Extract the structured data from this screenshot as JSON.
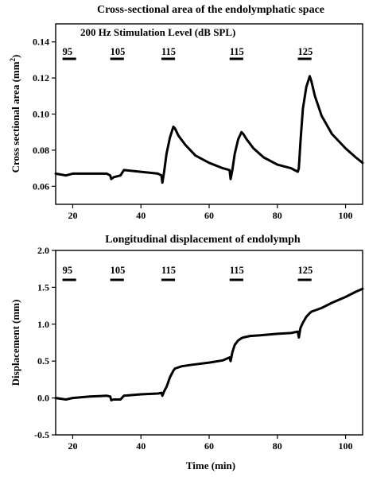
{
  "chart_data": [
    {
      "type": "line",
      "title": "Cross-sectional area of the endolymphatic space",
      "xlabel": "",
      "ylabel_main": "Cross sectional area (mm",
      "ylabel_sup": "2",
      "ylabel_end": ")",
      "xlim": [
        15,
        105
      ],
      "ylim": [
        0.05,
        0.15
      ],
      "xticks": [
        20,
        40,
        60,
        80,
        100
      ],
      "yticks": [
        0.06,
        0.08,
        0.1,
        0.12,
        0.14
      ],
      "ytick_labels": [
        "0.06",
        "0.08",
        "0.10",
        "0.12",
        "0.14"
      ],
      "stimulation_header": "200 Hz Stimulation Level (dB SPL)",
      "stimulus_labels": [
        "95",
        "105",
        "115",
        "115",
        "125"
      ],
      "stimulus_spans": [
        [
          17,
          21
        ],
        [
          31,
          35
        ],
        [
          46,
          50
        ],
        [
          66,
          70
        ],
        [
          86,
          90
        ]
      ],
      "series": [
        {
          "x": [
            15,
            18,
            20,
            25,
            30,
            31,
            31.3,
            32,
            34,
            35,
            40,
            45,
            46,
            46.3,
            46.8,
            47.5,
            48.5,
            49.5,
            50,
            51,
            53,
            56,
            60,
            64,
            66,
            66.3,
            66.8,
            67.5,
            68.5,
            69.5,
            70,
            71,
            73,
            76,
            80,
            84,
            86,
            86.3,
            86.8,
            87.5,
            88.5,
            89.5,
            90,
            91,
            93,
            96,
            100,
            103,
            105
          ],
          "y": [
            0.067,
            0.066,
            0.067,
            0.067,
            0.067,
            0.066,
            0.064,
            0.065,
            0.066,
            0.069,
            0.068,
            0.067,
            0.066,
            0.062,
            0.068,
            0.078,
            0.087,
            0.093,
            0.092,
            0.088,
            0.083,
            0.077,
            0.073,
            0.07,
            0.069,
            0.064,
            0.069,
            0.078,
            0.086,
            0.09,
            0.089,
            0.086,
            0.081,
            0.076,
            0.072,
            0.07,
            0.068,
            0.07,
            0.085,
            0.103,
            0.115,
            0.121,
            0.118,
            0.11,
            0.099,
            0.089,
            0.081,
            0.076,
            0.073
          ]
        }
      ]
    },
    {
      "type": "line",
      "title": "Longitudinal displacement of endolymph",
      "xlabel": "Time (min)",
      "ylabel": "Displacement (mm)",
      "xlim": [
        15,
        105
      ],
      "ylim": [
        -0.5,
        2.0
      ],
      "xticks": [
        20,
        40,
        60,
        80,
        100
      ],
      "yticks": [
        -0.5,
        0.0,
        0.5,
        1.0,
        1.5,
        2.0
      ],
      "ytick_labels": [
        "-0.5",
        "0.0",
        "0.5",
        "1.0",
        "1.5",
        "2.0"
      ],
      "stimulus_labels": [
        "95",
        "105",
        "115",
        "115",
        "125"
      ],
      "stimulus_spans": [
        [
          17,
          21
        ],
        [
          31,
          35
        ],
        [
          46,
          50
        ],
        [
          66,
          70
        ],
        [
          86,
          90
        ]
      ],
      "series": [
        {
          "x": [
            15,
            18,
            20,
            25,
            30,
            31,
            31.3,
            32,
            34,
            35,
            40,
            45,
            46,
            46.3,
            46.8,
            47.5,
            48.5,
            49.5,
            50,
            52,
            55,
            60,
            64,
            66,
            66.3,
            66.8,
            67.5,
            68.5,
            69.5,
            70,
            72,
            75,
            80,
            84,
            86,
            86.3,
            86.8,
            87.5,
            88.5,
            89.5,
            90,
            93,
            96,
            100,
            103,
            105
          ],
          "y": [
            0.0,
            -0.02,
            0.0,
            0.02,
            0.03,
            0.02,
            -0.03,
            -0.02,
            -0.02,
            0.03,
            0.05,
            0.06,
            0.07,
            0.03,
            0.09,
            0.15,
            0.28,
            0.37,
            0.4,
            0.43,
            0.45,
            0.48,
            0.51,
            0.55,
            0.5,
            0.62,
            0.72,
            0.78,
            0.81,
            0.82,
            0.84,
            0.85,
            0.87,
            0.88,
            0.9,
            0.82,
            0.95,
            1.02,
            1.1,
            1.15,
            1.17,
            1.22,
            1.29,
            1.37,
            1.44,
            1.48
          ]
        }
      ]
    }
  ]
}
